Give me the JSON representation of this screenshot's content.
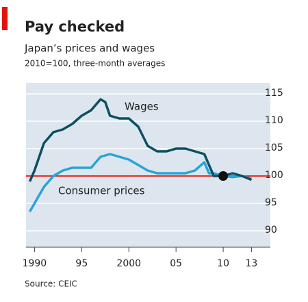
{
  "chart_data": {
    "type": "line",
    "title": "Pay checked",
    "subtitle": "Japan’s prices and wages",
    "note": "2010=100, three-month averages",
    "source": "Source: CEIC",
    "series": [
      {
        "name": "Wages",
        "color": "#0d4f63",
        "x": [
          1989.5,
          1990,
          1991,
          1992,
          1993,
          1994,
          1995,
          1996,
          1997,
          1997.5,
          1998,
          1999,
          2000,
          2001,
          2002,
          2003,
          2004,
          2005,
          2006,
          2007,
          2008,
          2009,
          2010,
          2011,
          2012,
          2013
        ],
        "values": [
          99,
          101,
          106,
          108,
          108.5,
          109.5,
          111,
          112,
          114,
          113.5,
          111,
          110.5,
          110.5,
          109,
          105.5,
          104.5,
          104.5,
          105,
          105,
          104.5,
          104,
          100,
          100,
          100.5,
          100,
          99.3
        ]
      },
      {
        "name": "Consumer prices",
        "color": "#29a3d6",
        "x": [
          1989.5,
          1990,
          1991,
          1992,
          1993,
          1994,
          1995,
          1996,
          1997,
          1998,
          1999,
          2000,
          2001,
          2002,
          2003,
          2004,
          2005,
          2006,
          2007,
          2008,
          2008.5,
          2009,
          2010,
          2011,
          2012,
          2013
        ],
        "values": [
          93.5,
          95,
          98,
          100,
          101,
          101.5,
          101.5,
          101.5,
          103.5,
          104,
          103.5,
          103,
          102,
          101,
          100.5,
          100.5,
          100.5,
          100.5,
          101,
          102.5,
          100.5,
          100.5,
          100,
          99.8,
          100,
          99.5
        ]
      }
    ],
    "xlim": [
      1989.1,
      2015
    ],
    "xticks": [
      {
        "value": 1990,
        "label": "1990"
      },
      {
        "value": 1995,
        "label": "95"
      },
      {
        "value": 2000,
        "label": "2000"
      },
      {
        "value": 2005,
        "label": "05"
      },
      {
        "value": 2010,
        "label": "10"
      },
      {
        "value": 2013,
        "label": "13"
      }
    ],
    "ylim": [
      87,
      117
    ],
    "yticks": [
      90,
      95,
      100,
      105,
      110,
      115
    ],
    "reference_line": {
      "value": 100,
      "color": "#e3120b"
    },
    "marker": {
      "x": 2010,
      "y": 100
    },
    "grid": true
  }
}
